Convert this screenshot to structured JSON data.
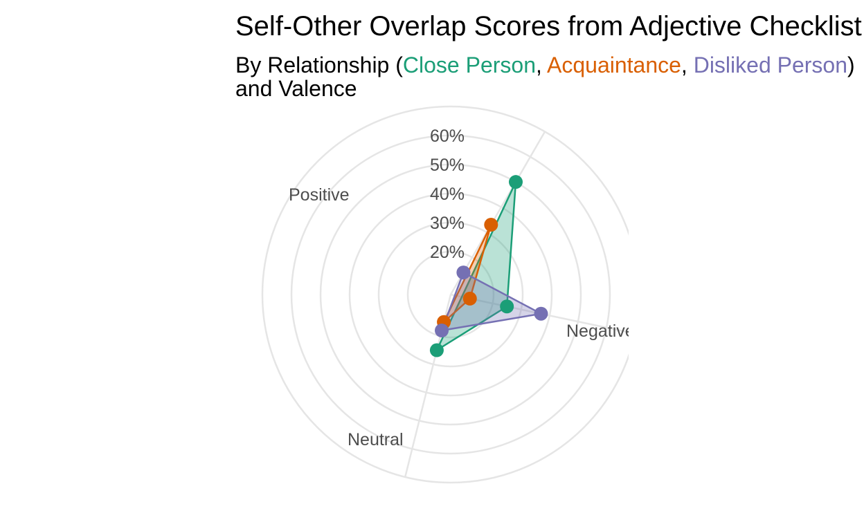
{
  "chart_data": {
    "type": "radar",
    "title": "Self-Other Overlap Scores from Adjective Checklist",
    "subtitle": {
      "prefix": "By Relationship (",
      "sep1": ", ",
      "sep2": ", ",
      "suffix": ")",
      "line2": "and Valence"
    },
    "axes": [
      "Positive",
      "Negative",
      "Neutral"
    ],
    "r_ticks": [
      "20%",
      "30%",
      "40%",
      "50%",
      "60%"
    ],
    "r_tick_values": [
      20,
      30,
      40,
      50,
      60
    ],
    "rlim": [
      10,
      70
    ],
    "grid": true,
    "series": [
      {
        "name": "Close Person",
        "color": "#1b9e77",
        "values": [
          50,
          25,
          25
        ]
      },
      {
        "name": "Acquaintance",
        "color": "#d95f02",
        "values": [
          33,
          12,
          15
        ]
      },
      {
        "name": "Disliked Person",
        "color": "#7570b3",
        "values": [
          14,
          37,
          18
        ]
      }
    ]
  }
}
